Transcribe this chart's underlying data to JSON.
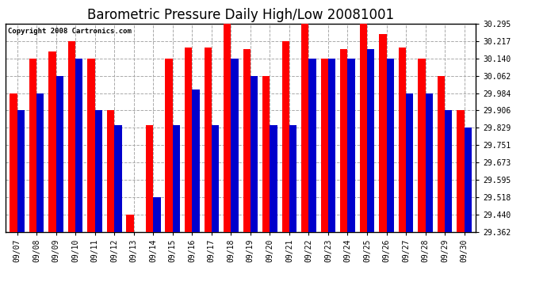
{
  "title": "Barometric Pressure Daily High/Low 20081001",
  "copyright": "Copyright 2008 Cartronics.com",
  "dates": [
    "09/07",
    "09/08",
    "09/09",
    "09/10",
    "09/11",
    "09/12",
    "09/13",
    "09/14",
    "09/15",
    "09/16",
    "09/17",
    "09/18",
    "09/19",
    "09/20",
    "09/21",
    "09/22",
    "09/23",
    "09/24",
    "09/25",
    "09/26",
    "09/27",
    "09/28",
    "09/29",
    "09/30"
  ],
  "highs": [
    29.984,
    30.14,
    30.17,
    30.217,
    30.14,
    29.906,
    29.44,
    29.84,
    30.14,
    30.19,
    30.19,
    30.295,
    30.18,
    30.062,
    30.217,
    30.295,
    30.14,
    30.18,
    30.295,
    30.25,
    30.19,
    30.14,
    30.062,
    29.906
  ],
  "lows": [
    29.906,
    29.984,
    30.062,
    30.14,
    29.906,
    29.84,
    29.362,
    29.518,
    29.84,
    30.0,
    29.84,
    30.14,
    30.062,
    29.84,
    29.84,
    30.14,
    30.14,
    30.14,
    30.18,
    30.14,
    29.984,
    29.984,
    29.906,
    29.829
  ],
  "y_min": 29.362,
  "y_max": 30.295,
  "y_ticks": [
    29.362,
    29.44,
    29.518,
    29.595,
    29.673,
    29.751,
    29.829,
    29.906,
    29.984,
    30.062,
    30.14,
    30.217,
    30.295
  ],
  "high_color": "#ff0000",
  "low_color": "#0000cc",
  "bg_color": "#ffffff",
  "plot_bg": "#ffffff",
  "grid_color": "#aaaaaa",
  "title_fontsize": 12,
  "tick_fontsize": 7,
  "bar_width": 0.38
}
